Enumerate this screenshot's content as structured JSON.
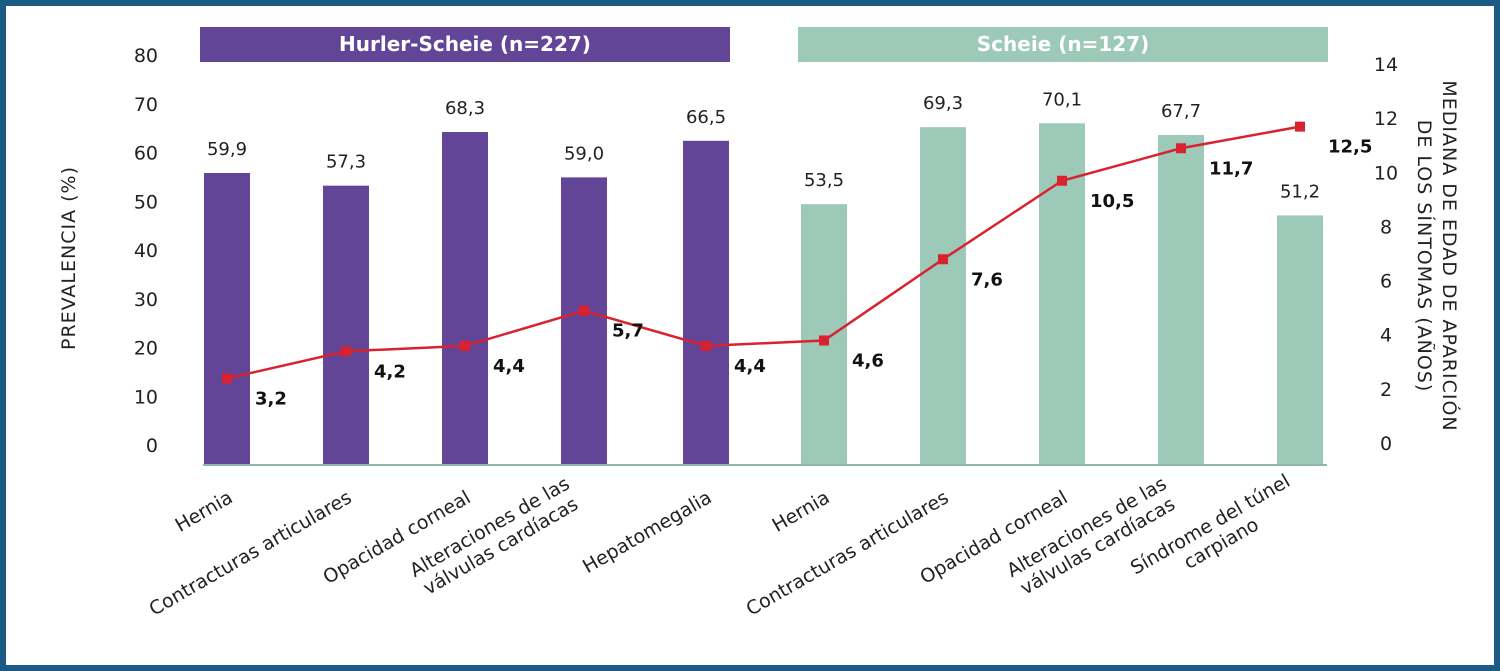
{
  "chart_data": {
    "type": "bar",
    "groups": [
      {
        "title": "Hurler-Scheie (n=227)",
        "color": "#634598"
      },
      {
        "title": "Scheie (n=127)",
        "color": "#9dc9b9"
      }
    ],
    "categories": [
      {
        "group": 0,
        "lines": [
          "Hernia"
        ]
      },
      {
        "group": 0,
        "lines": [
          "Contracturas articulares"
        ]
      },
      {
        "group": 0,
        "lines": [
          "Opacidad corneal"
        ]
      },
      {
        "group": 0,
        "lines": [
          "Alteraciones de las",
          "válvulas cardíacas"
        ]
      },
      {
        "group": 0,
        "lines": [
          "Hepatomegalia"
        ]
      },
      {
        "group": 1,
        "lines": [
          "Hernia"
        ]
      },
      {
        "group": 1,
        "lines": [
          "Contracturas articulares"
        ]
      },
      {
        "group": 1,
        "lines": [
          "Opacidad corneal"
        ]
      },
      {
        "group": 1,
        "lines": [
          "Alteraciones de las",
          "válvulas cardíacas"
        ]
      },
      {
        "group": 1,
        "lines": [
          "Síndrome del túnel",
          "carpiano"
        ]
      }
    ],
    "series": [
      {
        "name": "Prevalencia",
        "kind": "bar",
        "axis": "left",
        "values": [
          59.9,
          57.3,
          68.3,
          59.0,
          66.5,
          53.5,
          69.3,
          70.1,
          67.7,
          51.2
        ],
        "labels": [
          "59,9",
          "57,3",
          "68,3",
          "59,0",
          "66,5",
          "53,5",
          "69,3",
          "70,1",
          "67,7",
          "51,2"
        ]
      },
      {
        "name": "Mediana de edad de aparición",
        "kind": "line",
        "axis": "right",
        "color": "#d9222f",
        "values": [
          3.2,
          4.2,
          4.4,
          5.7,
          4.4,
          4.6,
          7.6,
          10.5,
          11.7,
          12.5
        ],
        "labels": [
          "3,2",
          "4,2",
          "4,4",
          "5,7",
          "4,4",
          "4,6",
          "7,6",
          "10,5",
          "11,7",
          "12,5"
        ]
      }
    ],
    "y_left": {
      "label": "PREVALENCIA (%)",
      "min": 0,
      "max": 80,
      "ticks": [
        "0",
        "10",
        "20",
        "30",
        "40",
        "50",
        "60",
        "70",
        "80"
      ]
    },
    "y_right": {
      "label_lines": [
        "MEDIANA DE EDAD DE APARICIÓN",
        "DE LOS SÍNTOMAS (AÑOS)"
      ],
      "min": 0,
      "max": 14,
      "ticks": [
        "0",
        "2",
        "4",
        "6",
        "8",
        "10",
        "12",
        "14"
      ]
    },
    "grid": false,
    "legend": "none"
  }
}
